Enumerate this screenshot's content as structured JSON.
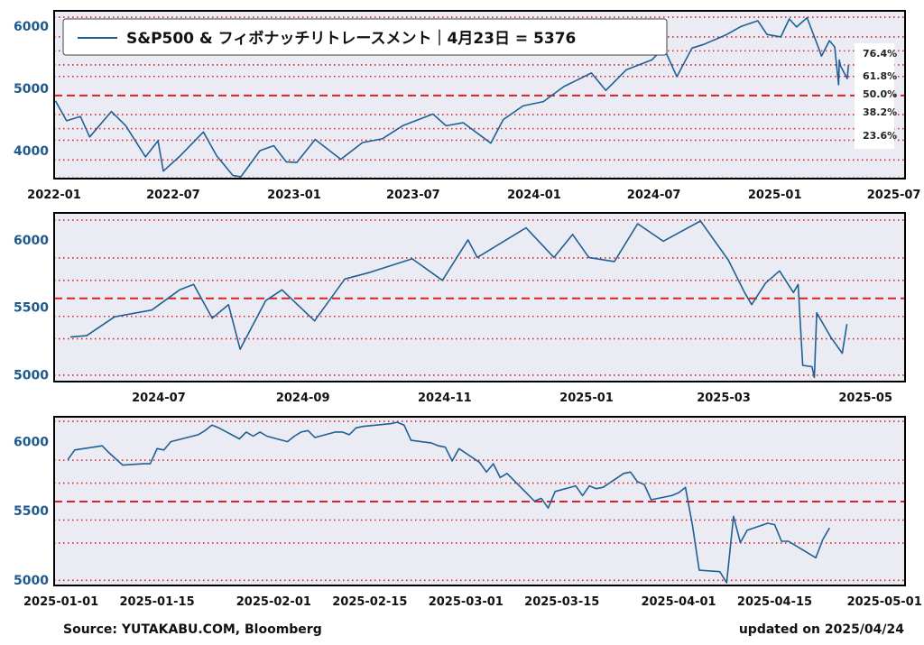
{
  "legend": "S&P500 & フィボナッチリトレースメント｜4月23日 = 5376",
  "source": "Source: YUTAKABU.COM, Bloomberg",
  "updated": "updated on 2025/04/24",
  "colors": {
    "line": "#1f6094",
    "fib": "#d8232a",
    "panel_bg": "#ebebf4",
    "tick_y": "#1f5a8c"
  },
  "fib_labels": [
    "76.4%",
    "61.8%",
    "50.0%",
    "38.2%",
    "23.6%"
  ],
  "chart_data": [
    {
      "type": "line",
      "name": "long-term",
      "x_ticks": [
        "2022-01",
        "2022-07",
        "2023-01",
        "2023-07",
        "2024-01",
        "2024-07",
        "2025-01",
        "2025-07"
      ],
      "y_ticks": [
        4000,
        5000,
        6000
      ],
      "xlim": [
        "2022-01-01",
        "2025-07-18"
      ],
      "ylim": [
        3550,
        6250
      ],
      "fib_levels": [
        6147,
        5830,
        5606,
        5380,
        5194,
        4887,
        4580,
        4354,
        4168,
        3851,
        3560
      ],
      "dashed_level": 4887,
      "series_x": [
        "2022-01-03",
        "2022-01-20",
        "2022-02-10",
        "2022-02-24",
        "2022-03-29",
        "2022-04-20",
        "2022-05-20",
        "2022-06-08",
        "2022-06-16",
        "2022-07-10",
        "2022-08-16",
        "2022-09-05",
        "2022-09-30",
        "2022-10-12",
        "2022-11-10",
        "2022-12-01",
        "2022-12-20",
        "2023-01-05",
        "2023-02-02",
        "2023-03-13",
        "2023-04-15",
        "2023-05-15",
        "2023-06-15",
        "2023-07-31",
        "2023-08-20",
        "2023-09-15",
        "2023-10-27",
        "2023-11-15",
        "2023-12-15",
        "2024-01-15",
        "2024-02-15",
        "2024-03-28",
        "2024-04-19",
        "2024-05-20",
        "2024-06-28",
        "2024-07-16",
        "2024-08-05",
        "2024-08-28",
        "2024-09-15",
        "2024-10-18",
        "2024-11-11",
        "2024-12-06",
        "2024-12-20",
        "2025-01-10",
        "2025-01-23",
        "2025-02-03",
        "2025-02-19",
        "2025-03-10",
        "2025-03-13",
        "2025-03-25",
        "2025-04-02",
        "2025-04-08",
        "2025-04-09",
        "2025-04-11",
        "2025-04-21",
        "2025-04-23"
      ],
      "series_y": [
        4800,
        4480,
        4550,
        4220,
        4630,
        4400,
        3900,
        4160,
        3670,
        3900,
        4300,
        3920,
        3600,
        3580,
        4000,
        4080,
        3820,
        3810,
        4180,
        3860,
        4130,
        4190,
        4400,
        4590,
        4400,
        4450,
        4120,
        4500,
        4720,
        4790,
        5030,
        5250,
        4970,
        5300,
        5460,
        5660,
        5190,
        5650,
        5710,
        5860,
        6000,
        6090,
        5870,
        5830,
        6120,
        5990,
        6140,
        5610,
        5520,
        5770,
        5670,
        5060,
        5460,
        5360,
        5160,
        5376
      ]
    },
    {
      "type": "line",
      "name": "mid-term",
      "x_ticks": [
        "2024-07",
        "2024-09",
        "2024-11",
        "2025-01",
        "2025-03",
        "2025-05"
      ],
      "y_ticks": [
        5000,
        5500,
        6000
      ],
      "xlim": [
        "2024-05-17",
        "2025-05-18"
      ],
      "ylim": [
        4950,
        6200
      ],
      "fib_levels": [
        6147,
        5866,
        5700,
        5567,
        5433,
        5267,
        4997
      ],
      "dashed_level": 5567,
      "series_x": [
        "2024-05-24",
        "2024-05-31",
        "2024-06-12",
        "2024-06-28",
        "2024-07-10",
        "2024-07-16",
        "2024-07-24",
        "2024-07-31",
        "2024-08-05",
        "2024-08-16",
        "2024-08-23",
        "2024-09-06",
        "2024-09-19",
        "2024-09-30",
        "2024-10-18",
        "2024-10-31",
        "2024-11-11",
        "2024-11-15",
        "2024-12-06",
        "2024-12-18",
        "2024-12-26",
        "2025-01-02",
        "2025-01-13",
        "2025-01-23",
        "2025-02-03",
        "2025-02-19",
        "2025-03-03",
        "2025-03-10",
        "2025-03-13",
        "2025-03-19",
        "2025-03-25",
        "2025-03-31",
        "2025-04-02",
        "2025-04-04",
        "2025-04-08",
        "2025-04-09",
        "2025-04-10",
        "2025-04-16",
        "2025-04-21",
        "2025-04-23"
      ],
      "series_y": [
        5280,
        5290,
        5430,
        5480,
        5630,
        5670,
        5420,
        5520,
        5190,
        5550,
        5630,
        5400,
        5710,
        5760,
        5860,
        5700,
        6000,
        5870,
        6090,
        5870,
        6040,
        5870,
        5840,
        6120,
        5990,
        6140,
        5850,
        5610,
        5520,
        5680,
        5770,
        5610,
        5670,
        5070,
        5060,
        4980,
        5460,
        5280,
        5160,
        5376
      ]
    },
    {
      "type": "line",
      "name": "short-term",
      "x_ticks": [
        "2025-01-01",
        "2025-01-15",
        "2025-02-01",
        "2025-02-15",
        "2025-03-01",
        "2025-03-15",
        "2025-04-01",
        "2025-04-15",
        "2025-05-01"
      ],
      "y_ticks": [
        5000,
        5500,
        6000
      ],
      "xlim": [
        "2024-12-31",
        "2025-05-04"
      ],
      "ylim": [
        4960,
        6180
      ],
      "fib_levels": [
        6147,
        5866,
        5700,
        5567,
        5433,
        5267,
        4997
      ],
      "dashed_level": 5567,
      "series_x": [
        "2025-01-02",
        "2025-01-03",
        "2025-01-07",
        "2025-01-08",
        "2025-01-10",
        "2025-01-13",
        "2025-01-14",
        "2025-01-15",
        "2025-01-16",
        "2025-01-17",
        "2025-01-21",
        "2025-01-22",
        "2025-01-23",
        "2025-01-24",
        "2025-01-27",
        "2025-01-28",
        "2025-01-29",
        "2025-01-30",
        "2025-01-31",
        "2025-02-03",
        "2025-02-04",
        "2025-02-05",
        "2025-02-06",
        "2025-02-07",
        "2025-02-10",
        "2025-02-11",
        "2025-02-12",
        "2025-02-13",
        "2025-02-14",
        "2025-02-18",
        "2025-02-19",
        "2025-02-20",
        "2025-02-21",
        "2025-02-24",
        "2025-02-25",
        "2025-02-26",
        "2025-02-27",
        "2025-02-28",
        "2025-03-03",
        "2025-03-04",
        "2025-03-05",
        "2025-03-06",
        "2025-03-07",
        "2025-03-10",
        "2025-03-11",
        "2025-03-12",
        "2025-03-13",
        "2025-03-14",
        "2025-03-17",
        "2025-03-18",
        "2025-03-19",
        "2025-03-20",
        "2025-03-21",
        "2025-03-24",
        "2025-03-25",
        "2025-03-26",
        "2025-03-27",
        "2025-03-28",
        "2025-03-31",
        "2025-04-01",
        "2025-04-02",
        "2025-04-03",
        "2025-04-04",
        "2025-04-07",
        "2025-04-08",
        "2025-04-09",
        "2025-04-10",
        "2025-04-11",
        "2025-04-14",
        "2025-04-15",
        "2025-04-16",
        "2025-04-17",
        "2025-04-21",
        "2025-04-22",
        "2025-04-23"
      ],
      "series_y": [
        5870,
        5940,
        5970,
        5920,
        5830,
        5840,
        5840,
        5950,
        5940,
        6000,
        6050,
        6080,
        6120,
        6100,
        6020,
        6070,
        6040,
        6070,
        6040,
        6000,
        6040,
        6070,
        6080,
        6030,
        6070,
        6070,
        6050,
        6100,
        6110,
        6130,
        6140,
        6120,
        6010,
        5990,
        5970,
        5960,
        5860,
        5950,
        5850,
        5780,
        5840,
        5740,
        5770,
        5620,
        5570,
        5590,
        5520,
        5640,
        5680,
        5610,
        5680,
        5660,
        5670,
        5770,
        5780,
        5710,
        5690,
        5580,
        5610,
        5630,
        5670,
        5400,
        5070,
        5060,
        4980,
        5460,
        5270,
        5360,
        5410,
        5400,
        5280,
        5280,
        5160,
        5290,
        5376
      ]
    }
  ]
}
